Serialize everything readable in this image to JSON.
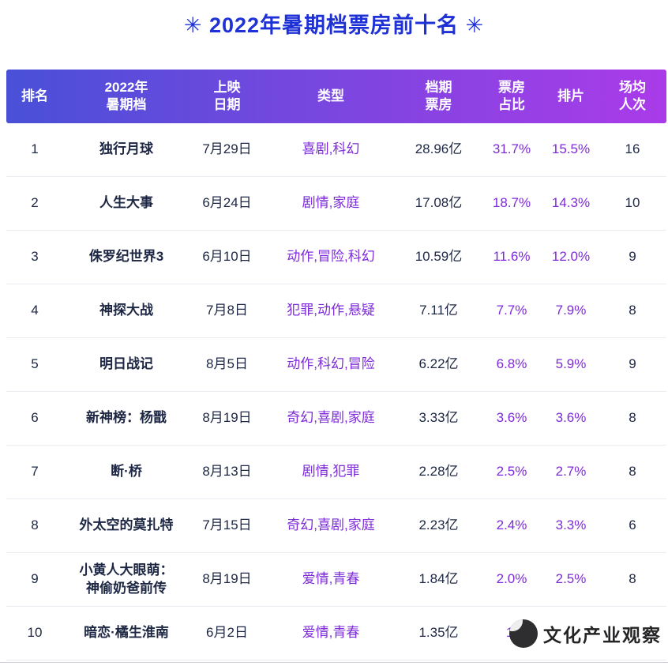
{
  "page": {
    "title": "✳ 2022年暑期档票房前十名 ✳"
  },
  "chart_data": {
    "type": "table",
    "title": "2022年暑期档票房前十名",
    "columns": [
      "排名",
      "2022年\n暑期档",
      "上映\n日期",
      "类型",
      "档期\n票房",
      "票房\n占比",
      "排片",
      "场均\n人次"
    ],
    "rows": [
      [
        "1",
        "独行月球",
        "7月29日",
        "喜剧,科幻",
        "28.96亿",
        "31.7%",
        "15.5%",
        "16"
      ],
      [
        "2",
        "人生大事",
        "6月24日",
        "剧情,家庭",
        "17.08亿",
        "18.7%",
        "14.3%",
        "10"
      ],
      [
        "3",
        "侏罗纪世界3",
        "6月10日",
        "动作,冒险,科幻",
        "10.59亿",
        "11.6%",
        "12.0%",
        "9"
      ],
      [
        "4",
        "神探大战",
        "7月8日",
        "犯罪,动作,悬疑",
        "7.11亿",
        "7.7%",
        "7.9%",
        "8"
      ],
      [
        "5",
        "明日战记",
        "8月5日",
        "动作,科幻,冒险",
        "6.22亿",
        "6.8%",
        "5.9%",
        "9"
      ],
      [
        "6",
        "新神榜：杨戬",
        "8月19日",
        "奇幻,喜剧,家庭",
        "3.33亿",
        "3.6%",
        "3.6%",
        "8"
      ],
      [
        "7",
        "断·桥",
        "8月13日",
        "剧情,犯罪",
        "2.28亿",
        "2.5%",
        "2.7%",
        "8"
      ],
      [
        "8",
        "外太空的莫扎特",
        "7月15日",
        "奇幻,喜剧,家庭",
        "2.23亿",
        "2.4%",
        "3.3%",
        "6"
      ],
      [
        "9",
        "小黄人大眼萌：\n神偷奶爸前传",
        "8月19日",
        "爱情,青春",
        "1.84亿",
        "2.0%",
        "2.5%",
        "8"
      ],
      [
        "10",
        "暗恋·橘生淮南",
        "6月2日",
        "爱情,青春",
        "1.35亿",
        "1.",
        "",
        ""
      ]
    ]
  },
  "watermark": {
    "text": "文化产业观察"
  },
  "colors": {
    "title_blue": "#1e31d6",
    "header_gradient_left": "#4950d8",
    "header_gradient_right": "#aa3be9",
    "text_dark": "#1d2744",
    "text_purple": "#7d2bd9"
  }
}
